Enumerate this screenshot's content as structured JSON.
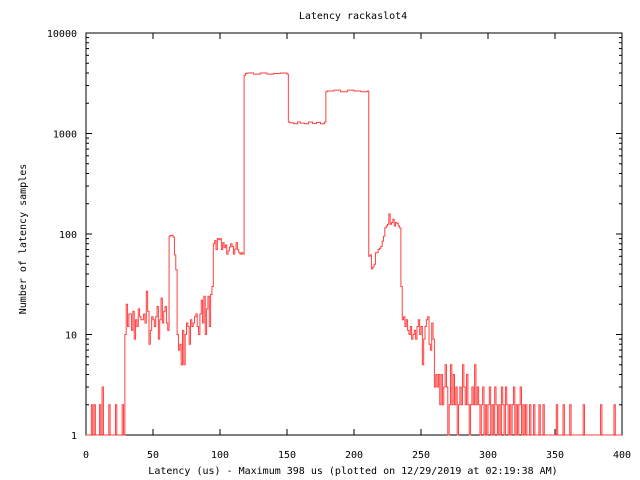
{
  "chart_data": {
    "type": "line",
    "title": "Latency rackaslot4",
    "xlabel": "Latency (us) - Maximum 398 us (plotted on 12/29/2019 at 02:19:38 AM)",
    "ylabel": "Number of latency samples",
    "xlim": [
      0,
      400
    ],
    "ylim": [
      1,
      10000
    ],
    "y_scale": "log",
    "x_ticks": [
      0,
      50,
      100,
      150,
      200,
      250,
      300,
      350,
      400
    ],
    "y_ticks": [
      1,
      10,
      100,
      1000,
      10000
    ],
    "x_tick_labels": [
      "0",
      "50",
      "100",
      "150",
      "200",
      "250",
      "300",
      "350",
      "400"
    ],
    "y_tick_labels": [
      "1",
      "10",
      "100",
      "1000",
      "10000"
    ],
    "grid": false,
    "step": true,
    "series": [
      {
        "color": "#ff4040",
        "points": [
          [
            0,
            1
          ],
          [
            3,
            1
          ],
          [
            4,
            2
          ],
          [
            5,
            1
          ],
          [
            6,
            2
          ],
          [
            7,
            1
          ],
          [
            9,
            1
          ],
          [
            10,
            2
          ],
          [
            11,
            1
          ],
          [
            12,
            3
          ],
          [
            13,
            1
          ],
          [
            14,
            1
          ],
          [
            16,
            1
          ],
          [
            17,
            2
          ],
          [
            18,
            1
          ],
          [
            20,
            1
          ],
          [
            22,
            2
          ],
          [
            23,
            1
          ],
          [
            24,
            1
          ],
          [
            27,
            2
          ],
          [
            28,
            1
          ],
          [
            29,
            10
          ],
          [
            30,
            20
          ],
          [
            31,
            12
          ],
          [
            32,
            16
          ],
          [
            33,
            16
          ],
          [
            34,
            11
          ],
          [
            35,
            17
          ],
          [
            36,
            9
          ],
          [
            37,
            14
          ],
          [
            38,
            12
          ],
          [
            39,
            18
          ],
          [
            40,
            15
          ],
          [
            41,
            14
          ],
          [
            42,
            14
          ],
          [
            43,
            16
          ],
          [
            44,
            13
          ],
          [
            45,
            27
          ],
          [
            46,
            17
          ],
          [
            47,
            8
          ],
          [
            48,
            11
          ],
          [
            49,
            15
          ],
          [
            50,
            14
          ],
          [
            51,
            12
          ],
          [
            52,
            15
          ],
          [
            53,
            19
          ],
          [
            54,
            9
          ],
          [
            55,
            14
          ],
          [
            56,
            23
          ],
          [
            57,
            13
          ],
          [
            58,
            17
          ],
          [
            59,
            19
          ],
          [
            60,
            13
          ],
          [
            61,
            11
          ],
          [
            62,
            95
          ],
          [
            63,
            97
          ],
          [
            64,
            97
          ],
          [
            65,
            93
          ],
          [
            66,
            62
          ],
          [
            67,
            44
          ],
          [
            68,
            10
          ],
          [
            69,
            7
          ],
          [
            70,
            8
          ],
          [
            71,
            5
          ],
          [
            72,
            11
          ],
          [
            73,
            5
          ],
          [
            74,
            10
          ],
          [
            75,
            13
          ],
          [
            76,
            12
          ],
          [
            77,
            8
          ],
          [
            78,
            14
          ],
          [
            79,
            12
          ],
          [
            80,
            13
          ],
          [
            81,
            15
          ],
          [
            82,
            16
          ],
          [
            83,
            12
          ],
          [
            84,
            10
          ],
          [
            85,
            16
          ],
          [
            86,
            22
          ],
          [
            87,
            13
          ],
          [
            88,
            24
          ],
          [
            89,
            10
          ],
          [
            90,
            18
          ],
          [
            91,
            24
          ],
          [
            92,
            12
          ],
          [
            93,
            25
          ],
          [
            94,
            30
          ],
          [
            95,
            80
          ],
          [
            96,
            86
          ],
          [
            97,
            70
          ],
          [
            98,
            90
          ],
          [
            99,
            88
          ],
          [
            100,
            90
          ],
          [
            101,
            70
          ],
          [
            102,
            82
          ],
          [
            103,
            73
          ],
          [
            104,
            78
          ],
          [
            105,
            63
          ],
          [
            106,
            68
          ],
          [
            107,
            74
          ],
          [
            108,
            80
          ],
          [
            109,
            75
          ],
          [
            110,
            63
          ],
          [
            111,
            71
          ],
          [
            112,
            82
          ],
          [
            113,
            70
          ],
          [
            114,
            65
          ],
          [
            115,
            63
          ],
          [
            116,
            65
          ],
          [
            117,
            63
          ],
          [
            118,
            3800
          ],
          [
            119,
            3950
          ],
          [
            120,
            4000
          ],
          [
            125,
            3900
          ],
          [
            130,
            4000
          ],
          [
            135,
            3900
          ],
          [
            140,
            3950
          ],
          [
            145,
            4000
          ],
          [
            150,
            3900
          ],
          [
            151,
            1300
          ],
          [
            152,
            1280
          ],
          [
            155,
            1250
          ],
          [
            158,
            1300
          ],
          [
            160,
            1270
          ],
          [
            163,
            1250
          ],
          [
            166,
            1300
          ],
          [
            169,
            1260
          ],
          [
            172,
            1290
          ],
          [
            175,
            1250
          ],
          [
            178,
            1300
          ],
          [
            179,
            2600
          ],
          [
            180,
            2650
          ],
          [
            185,
            2700
          ],
          [
            190,
            2600
          ],
          [
            195,
            2700
          ],
          [
            200,
            2650
          ],
          [
            205,
            2600
          ],
          [
            210,
            2650
          ],
          [
            211,
            60
          ],
          [
            212,
            62
          ],
          [
            213,
            45
          ],
          [
            214,
            47
          ],
          [
            215,
            50
          ],
          [
            216,
            65
          ],
          [
            217,
            65
          ],
          [
            218,
            70
          ],
          [
            219,
            72
          ],
          [
            220,
            75
          ],
          [
            221,
            85
          ],
          [
            222,
            95
          ],
          [
            223,
            115
          ],
          [
            224,
            120
          ],
          [
            225,
            125
          ],
          [
            226,
            158
          ],
          [
            227,
            125
          ],
          [
            228,
            130
          ],
          [
            229,
            140
          ],
          [
            230,
            120
          ],
          [
            231,
            130
          ],
          [
            232,
            128
          ],
          [
            233,
            120
          ],
          [
            234,
            115
          ],
          [
            235,
            30
          ],
          [
            236,
            14
          ],
          [
            237,
            15
          ],
          [
            238,
            12
          ],
          [
            239,
            14
          ],
          [
            240,
            11
          ],
          [
            241,
            10
          ],
          [
            242,
            12
          ],
          [
            243,
            9
          ],
          [
            244,
            10
          ],
          [
            245,
            11
          ],
          [
            246,
            9
          ],
          [
            247,
            12
          ],
          [
            248,
            14
          ],
          [
            249,
            10
          ],
          [
            250,
            12
          ],
          [
            251,
            5
          ],
          [
            252,
            9
          ],
          [
            253,
            12
          ],
          [
            254,
            14
          ],
          [
            255,
            15
          ],
          [
            256,
            8
          ],
          [
            257,
            7
          ],
          [
            258,
            13
          ],
          [
            259,
            9
          ],
          [
            260,
            3
          ],
          [
            261,
            4
          ],
          [
            262,
            3
          ],
          [
            263,
            4
          ],
          [
            264,
            2
          ],
          [
            265,
            4
          ],
          [
            266,
            2
          ],
          [
            267,
            3
          ],
          [
            268,
            5
          ],
          [
            269,
            3
          ],
          [
            270,
            1
          ],
          [
            271,
            2
          ],
          [
            272,
            5
          ],
          [
            273,
            2
          ],
          [
            274,
            4
          ],
          [
            275,
            2
          ],
          [
            276,
            3
          ],
          [
            277,
            1
          ],
          [
            278,
            2
          ],
          [
            279,
            3
          ],
          [
            280,
            2
          ],
          [
            281,
            5
          ],
          [
            282,
            3
          ],
          [
            283,
            2
          ],
          [
            284,
            4
          ],
          [
            285,
            2
          ],
          [
            286,
            1
          ],
          [
            287,
            2
          ],
          [
            288,
            3
          ],
          [
            289,
            2
          ],
          [
            290,
            5
          ],
          [
            291,
            2
          ],
          [
            292,
            3
          ],
          [
            293,
            2
          ],
          [
            294,
            1
          ],
          [
            295,
            2
          ],
          [
            296,
            3
          ],
          [
            297,
            1
          ],
          [
            298,
            2
          ],
          [
            299,
            1
          ],
          [
            300,
            2
          ],
          [
            301,
            3
          ],
          [
            302,
            1
          ],
          [
            303,
            2
          ],
          [
            304,
            1
          ],
          [
            305,
            3
          ],
          [
            306,
            2
          ],
          [
            307,
            1
          ],
          [
            308,
            2
          ],
          [
            309,
            1
          ],
          [
            310,
            3
          ],
          [
            311,
            2
          ],
          [
            312,
            1
          ],
          [
            313,
            3
          ],
          [
            314,
            2
          ],
          [
            315,
            1
          ],
          [
            316,
            2
          ],
          [
            317,
            1
          ],
          [
            318,
            2
          ],
          [
            319,
            3
          ],
          [
            320,
            1
          ],
          [
            321,
            2
          ],
          [
            322,
            1
          ],
          [
            323,
            2
          ],
          [
            324,
            3
          ],
          [
            325,
            1
          ],
          [
            326,
            2
          ],
          [
            327,
            1
          ],
          [
            328,
            2
          ],
          [
            329,
            1
          ],
          [
            330,
            1
          ],
          [
            331,
            2
          ],
          [
            332,
            1
          ],
          [
            333,
            1
          ],
          [
            334,
            2
          ],
          [
            335,
            1
          ],
          [
            336,
            1
          ],
          [
            337,
            1
          ],
          [
            338,
            2
          ],
          [
            339,
            1
          ],
          [
            340,
            1
          ],
          [
            341,
            2
          ],
          [
            342,
            1
          ],
          [
            343,
            1
          ],
          [
            344,
            1
          ],
          [
            345,
            1
          ],
          [
            346,
            1
          ],
          [
            347,
            1
          ],
          [
            348,
            1
          ],
          [
            349,
            1
          ],
          [
            350,
            1
          ],
          [
            351,
            2
          ],
          [
            352,
            1
          ],
          [
            353,
            1
          ],
          [
            354,
            1
          ],
          [
            355,
            1
          ],
          [
            356,
            2
          ],
          [
            357,
            1
          ],
          [
            358,
            1
          ],
          [
            359,
            1
          ],
          [
            360,
            1
          ],
          [
            361,
            2
          ],
          [
            362,
            1
          ],
          [
            363,
            1
          ],
          [
            364,
            1
          ],
          [
            365,
            1
          ],
          [
            366,
            1
          ],
          [
            367,
            1
          ],
          [
            368,
            1
          ],
          [
            369,
            1
          ],
          [
            370,
            1
          ],
          [
            371,
            2
          ],
          [
            372,
            1
          ],
          [
            373,
            1
          ],
          [
            374,
            1
          ],
          [
            375,
            1
          ],
          [
            376,
            1
          ],
          [
            377,
            1
          ],
          [
            378,
            1
          ],
          [
            379,
            1
          ],
          [
            380,
            1
          ],
          [
            381,
            1
          ],
          [
            382,
            1
          ],
          [
            383,
            1
          ],
          [
            384,
            2
          ],
          [
            385,
            1
          ],
          [
            386,
            1
          ],
          [
            387,
            1
          ],
          [
            388,
            1
          ],
          [
            389,
            1
          ],
          [
            390,
            1
          ],
          [
            391,
            1
          ],
          [
            392,
            1
          ],
          [
            393,
            1
          ],
          [
            394,
            2
          ],
          [
            395,
            1
          ],
          [
            396,
            1
          ],
          [
            397,
            1
          ],
          [
            398,
            1
          ],
          [
            399,
            1
          ]
        ]
      }
    ]
  }
}
